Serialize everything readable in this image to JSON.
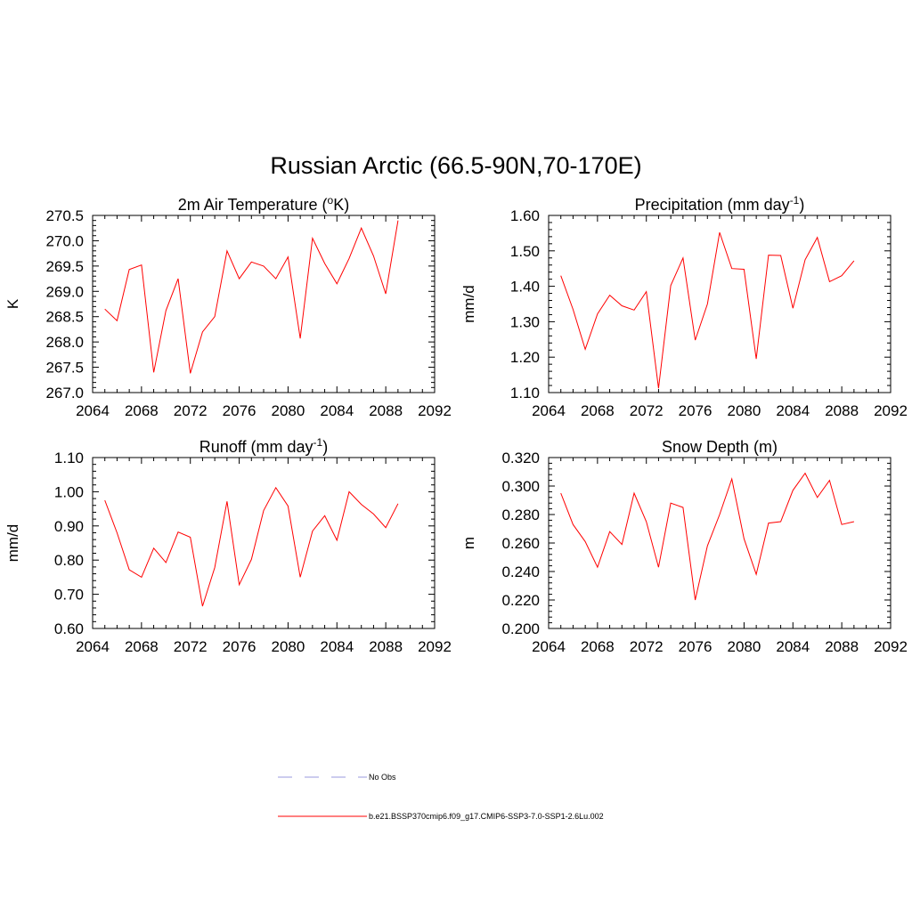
{
  "title": "Russian Arctic (66.5-90N,70-170E)",
  "colors": {
    "series": "#ff0000",
    "obs": "#9999dd",
    "axis": "#000000"
  },
  "legend": [
    {
      "label": "No Obs",
      "style": "dashed",
      "color": "#9999dd"
    },
    {
      "label": "b.e21.BSSP370cmip6.f09_g17.CMIP6-SSP3-7.0-SSP1-2.6Lu.002",
      "style": "solid",
      "color": "#ff0000"
    }
  ],
  "chart_data": [
    {
      "type": "line",
      "title": "2m Air Temperature (",
      "title_sup": "o",
      "title_suffix": "K)",
      "ylabel": "K",
      "xlim": [
        2064,
        2092
      ],
      "ylim": [
        267.0,
        270.5
      ],
      "xticks": [
        "2064",
        "2068",
        "2072",
        "2076",
        "2080",
        "2084",
        "2088",
        "2092"
      ],
      "yticks": [
        "267.0",
        "267.5",
        "268.0",
        "268.5",
        "269.0",
        "269.5",
        "270.0",
        "270.5"
      ],
      "x": [
        2065,
        2066,
        2067,
        2068,
        2069,
        2070,
        2071,
        2072,
        2073,
        2074,
        2075,
        2076,
        2077,
        2078,
        2079,
        2080,
        2081,
        2082,
        2083,
        2084,
        2085,
        2086,
        2087,
        2088,
        2089
      ],
      "series": [
        {
          "values": [
            268.65,
            268.42,
            269.43,
            269.52,
            267.4,
            268.62,
            269.25,
            267.38,
            268.2,
            268.5,
            269.8,
            269.25,
            269.58,
            269.5,
            269.25,
            269.68,
            268.07,
            270.05,
            269.55,
            269.15,
            269.65,
            270.25,
            269.7,
            268.95,
            270.4
          ]
        }
      ]
    },
    {
      "type": "line",
      "title": "Precipitation (mm day",
      "title_sup": "-1",
      "title_suffix": ")",
      "ylabel": "mm/d",
      "xlim": [
        2064,
        2092
      ],
      "ylim": [
        1.1,
        1.6
      ],
      "xticks": [
        "2064",
        "2068",
        "2072",
        "2076",
        "2080",
        "2084",
        "2088",
        "2092"
      ],
      "yticks": [
        "1.10",
        "1.20",
        "1.30",
        "1.40",
        "1.50",
        "1.60"
      ],
      "x": [
        2065,
        2066,
        2067,
        2068,
        2069,
        2070,
        2071,
        2072,
        2073,
        2074,
        2075,
        2076,
        2077,
        2078,
        2079,
        2080,
        2081,
        2082,
        2083,
        2084,
        2085,
        2086,
        2087,
        2088,
        2089
      ],
      "series": [
        {
          "values": [
            1.43,
            1.335,
            1.222,
            1.322,
            1.375,
            1.345,
            1.333,
            1.385,
            1.112,
            1.402,
            1.48,
            1.248,
            1.35,
            1.552,
            1.45,
            1.448,
            1.195,
            1.488,
            1.487,
            1.338,
            1.475,
            1.538,
            1.413,
            1.43,
            1.472
          ]
        }
      ]
    },
    {
      "type": "line",
      "title": "Runoff (mm day",
      "title_sup": "-1",
      "title_suffix": ")",
      "ylabel": "mm/d",
      "xlim": [
        2064,
        2092
      ],
      "ylim": [
        0.6,
        1.1
      ],
      "xticks": [
        "2064",
        "2068",
        "2072",
        "2076",
        "2080",
        "2084",
        "2088",
        "2092"
      ],
      "yticks": [
        "0.60",
        "0.70",
        "0.80",
        "0.90",
        "1.00",
        "1.10"
      ],
      "x": [
        2065,
        2066,
        2067,
        2068,
        2069,
        2070,
        2071,
        2072,
        2073,
        2074,
        2075,
        2076,
        2077,
        2078,
        2079,
        2080,
        2081,
        2082,
        2083,
        2084,
        2085,
        2086,
        2087,
        2088,
        2089
      ],
      "series": [
        {
          "values": [
            0.975,
            0.88,
            0.772,
            0.75,
            0.835,
            0.793,
            0.882,
            0.867,
            0.665,
            0.778,
            0.972,
            0.728,
            0.802,
            0.945,
            1.012,
            0.958,
            0.75,
            0.885,
            0.93,
            0.858,
            1.0,
            0.963,
            0.935,
            0.895,
            0.965
          ]
        }
      ]
    },
    {
      "type": "line",
      "title": "Snow Depth (m)",
      "title_sup": "",
      "title_suffix": "",
      "ylabel": "m",
      "xlim": [
        2064,
        2092
      ],
      "ylim": [
        0.2,
        0.32
      ],
      "xticks": [
        "2064",
        "2068",
        "2072",
        "2076",
        "2080",
        "2084",
        "2088",
        "2092"
      ],
      "yticks": [
        "0.200",
        "0.220",
        "0.240",
        "0.260",
        "0.280",
        "0.300",
        "0.320"
      ],
      "x": [
        2065,
        2066,
        2067,
        2068,
        2069,
        2070,
        2071,
        2072,
        2073,
        2074,
        2075,
        2076,
        2077,
        2078,
        2079,
        2080,
        2081,
        2082,
        2083,
        2084,
        2085,
        2086,
        2087,
        2088,
        2089
      ],
      "series": [
        {
          "values": [
            0.295,
            0.273,
            0.261,
            0.243,
            0.268,
            0.259,
            0.295,
            0.275,
            0.243,
            0.288,
            0.285,
            0.22,
            0.258,
            0.28,
            0.305,
            0.263,
            0.238,
            0.274,
            0.275,
            0.297,
            0.309,
            0.292,
            0.304,
            0.273,
            0.275
          ]
        }
      ]
    }
  ]
}
